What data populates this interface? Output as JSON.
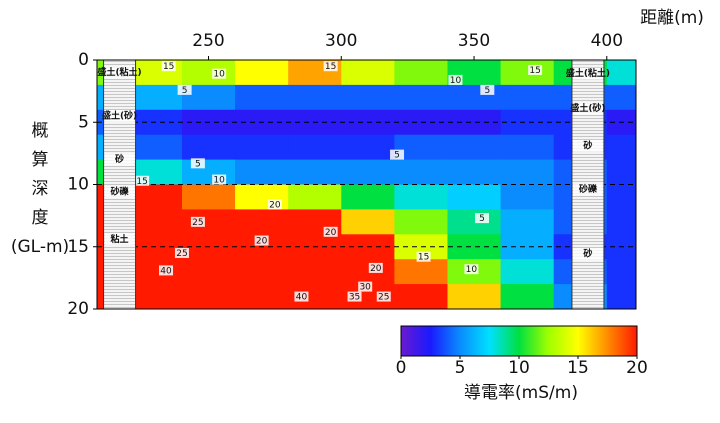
{
  "chart_data": {
    "type": "heatmap",
    "xlabel": "距離(m)",
    "ylabel": [
      "概",
      "算",
      "深",
      "度",
      "(GL-m)"
    ],
    "colorbar_label": "導電率(mS/m)",
    "xlim": [
      208,
      411
    ],
    "xticks": [
      250,
      300,
      350,
      400
    ],
    "ylim": [
      0,
      20
    ],
    "yticks": [
      0,
      5,
      10,
      15,
      20
    ],
    "y_inverted": true,
    "clim": [
      0,
      20
    ],
    "cticks": [
      0,
      5,
      10,
      15,
      20
    ],
    "colors": [
      "#6a1ad0",
      "#1a1aff",
      "#0a8cff",
      "#00e0ff",
      "#00e040",
      "#a0ff00",
      "#ffff00",
      "#ff8c00",
      "#ff1a00"
    ],
    "reference_lines": [
      5,
      10,
      15
    ],
    "field": {
      "x": [
        210,
        230,
        250,
        270,
        290,
        310,
        330,
        350,
        370,
        390,
        410
      ],
      "depth": [
        1,
        3,
        5,
        7,
        9,
        11,
        13,
        15,
        17,
        19
      ],
      "values": [
        [
          12,
          14,
          13,
          15,
          17,
          14,
          12,
          10,
          12,
          10,
          8
        ],
        [
          6,
          6,
          5,
          4,
          4,
          4,
          4,
          4,
          4,
          4,
          4
        ],
        [
          4,
          3,
          2,
          2,
          2,
          2,
          2,
          2,
          3,
          3,
          2
        ],
        [
          6,
          4,
          3,
          3,
          3,
          3,
          4,
          4,
          4,
          3,
          3
        ],
        [
          10,
          8,
          6,
          5,
          5,
          5,
          5,
          5,
          5,
          4,
          3
        ],
        [
          20,
          20,
          18,
          15,
          13,
          10,
          8,
          7,
          5,
          4,
          3
        ],
        [
          22,
          24,
          22,
          22,
          20,
          16,
          12,
          9,
          6,
          4,
          3
        ],
        [
          22,
          23,
          22,
          20,
          22,
          20,
          14,
          10,
          6,
          3,
          3
        ],
        [
          30,
          30,
          30,
          28,
          26,
          25,
          18,
          12,
          8,
          4,
          3
        ],
        [
          35,
          38,
          38,
          35,
          35,
          32,
          25,
          16,
          10,
          5,
          3
        ]
      ]
    },
    "contour_labels": [
      {
        "x": 235,
        "depth": 0.5,
        "value": 15
      },
      {
        "x": 254,
        "depth": 1.1,
        "value": 10
      },
      {
        "x": 241,
        "depth": 2.4,
        "value": 5
      },
      {
        "x": 296,
        "depth": 0.5,
        "value": 15
      },
      {
        "x": 343,
        "depth": 1.6,
        "value": 10
      },
      {
        "x": 355,
        "depth": 2.4,
        "value": 5
      },
      {
        "x": 373,
        "depth": 0.8,
        "value": 15
      },
      {
        "x": 246,
        "depth": 8.3,
        "value": 5
      },
      {
        "x": 321,
        "depth": 7.6,
        "value": 5
      },
      {
        "x": 225,
        "depth": 9.7,
        "value": 15
      },
      {
        "x": 254,
        "depth": 9.6,
        "value": 10
      },
      {
        "x": 275,
        "depth": 11.6,
        "value": 20
      },
      {
        "x": 246,
        "depth": 13.0,
        "value": 25
      },
      {
        "x": 270,
        "depth": 14.5,
        "value": 20
      },
      {
        "x": 296,
        "depth": 13.8,
        "value": 20
      },
      {
        "x": 353,
        "depth": 12.7,
        "value": 5
      },
      {
        "x": 240,
        "depth": 15.5,
        "value": 25
      },
      {
        "x": 331,
        "depth": 15.8,
        "value": 15
      },
      {
        "x": 349,
        "depth": 16.8,
        "value": 10
      },
      {
        "x": 234,
        "depth": 16.9,
        "value": 40
      },
      {
        "x": 313,
        "depth": 16.7,
        "value": 20
      },
      {
        "x": 309,
        "depth": 18.2,
        "value": 30
      },
      {
        "x": 305,
        "depth": 19.0,
        "value": 35
      },
      {
        "x": 316,
        "depth": 19.0,
        "value": 25
      },
      {
        "x": 285,
        "depth": 19.0,
        "value": 40
      }
    ],
    "boreholes": [
      {
        "x": 216.5,
        "layers": [
          {
            "name": "盛土(粘土)",
            "depth": 1.0
          },
          {
            "name": "盛土(砂)",
            "depth": 4.5
          },
          {
            "name": "砂",
            "depth": 8.0
          },
          {
            "name": "砂礫",
            "depth": 10.6
          },
          {
            "name": "粘土",
            "depth": 14.4
          }
        ]
      },
      {
        "x": 392.9,
        "layers": [
          {
            "name": "盛土(粘土)",
            "depth": 1.1
          },
          {
            "name": "盛土(砂)",
            "depth": 3.9
          },
          {
            "name": "砂",
            "depth": 6.9
          },
          {
            "name": "砂礫",
            "depth": 10.4
          },
          {
            "name": "砂",
            "depth": 15.6
          }
        ]
      }
    ]
  }
}
